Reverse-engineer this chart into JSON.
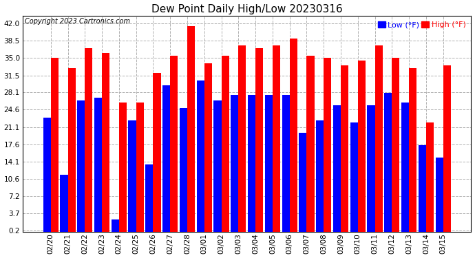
{
  "title": "Dew Point Daily High/Low 20230316",
  "copyright": "Copyright 2023 Cartronics.com",
  "dates": [
    "02/20",
    "02/21",
    "02/22",
    "02/23",
    "02/24",
    "02/25",
    "02/26",
    "02/27",
    "02/28",
    "03/01",
    "03/02",
    "03/03",
    "03/04",
    "03/05",
    "03/06",
    "03/07",
    "03/08",
    "03/09",
    "03/10",
    "03/11",
    "03/12",
    "03/13",
    "03/14",
    "03/15"
  ],
  "high_values": [
    35.0,
    33.0,
    37.0,
    36.0,
    26.0,
    26.0,
    32.0,
    35.5,
    41.5,
    34.0,
    35.5,
    37.5,
    37.0,
    37.5,
    39.0,
    35.5,
    35.0,
    33.5,
    34.5,
    37.5,
    35.0,
    33.0,
    22.0,
    33.5
  ],
  "low_values": [
    23.0,
    11.5,
    26.5,
    27.0,
    2.5,
    22.5,
    13.5,
    29.5,
    25.0,
    30.5,
    26.5,
    27.5,
    27.5,
    27.5,
    27.5,
    20.0,
    22.5,
    25.5,
    22.0,
    25.5,
    28.0,
    26.0,
    17.5,
    15.0
  ],
  "bar_color_high": "#ff0000",
  "bar_color_low": "#0000ff",
  "yticks": [
    0.2,
    3.7,
    7.2,
    10.6,
    14.1,
    17.6,
    21.1,
    24.6,
    28.1,
    31.5,
    35.0,
    38.5,
    42.0
  ],
  "ymin": 0.0,
  "ymax": 43.5,
  "bg_color": "#ffffff",
  "grid_color": "#b0b0b0",
  "title_fontsize": 11,
  "legend_low_label": "Low",
  "legend_high_label": "High",
  "legend_unit": " (°F)"
}
